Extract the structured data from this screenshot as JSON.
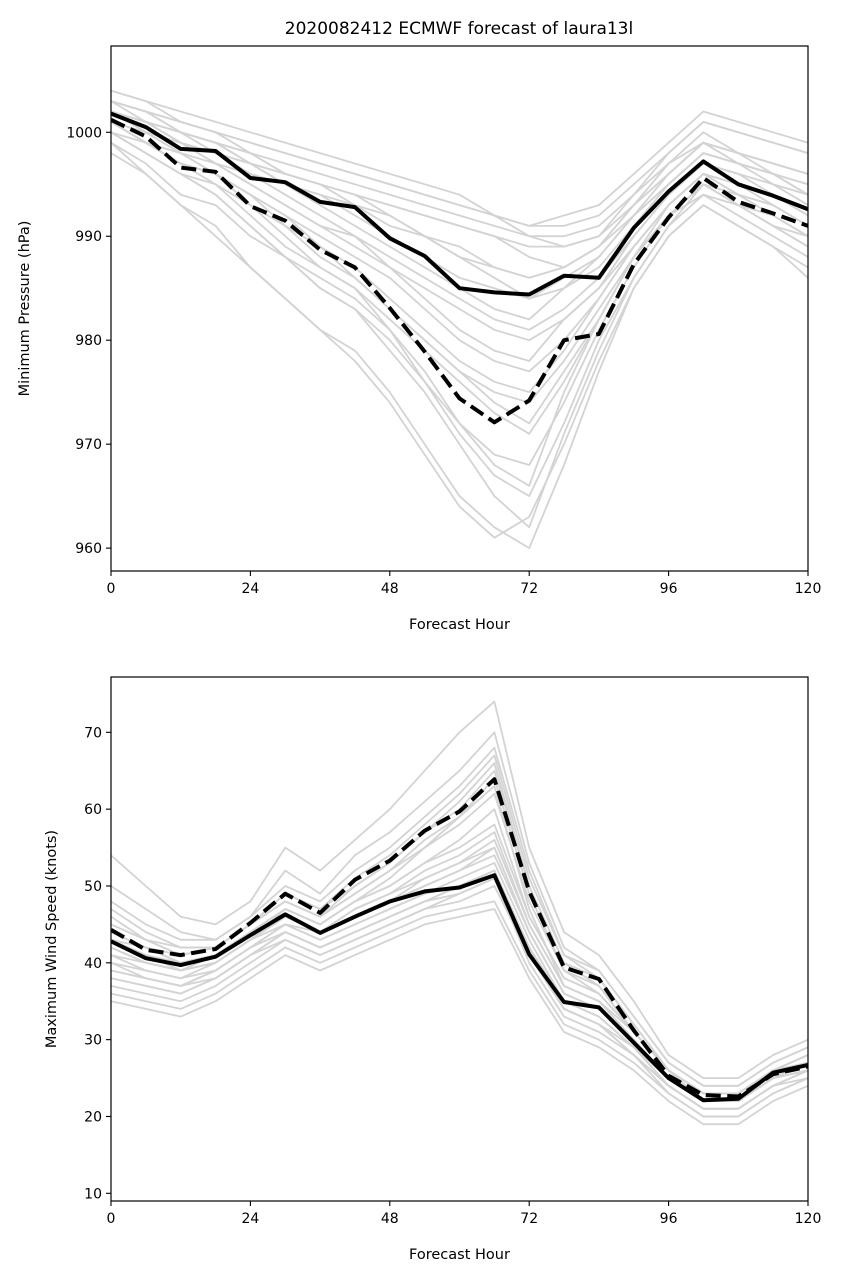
{
  "figure": {
    "title": "2020082412 ECMWF forecast of laura13l",
    "colors": {
      "ensemble": "#d3d3d3",
      "mean": "#000000",
      "background": "#ffffff"
    }
  },
  "chart_data": [
    {
      "type": "line",
      "title": "2020082412 ECMWF forecast of laura13l",
      "xlabel": "Forecast Hour",
      "ylabel": "Minimum Pressure (hPa)",
      "xlim": [
        0,
        120
      ],
      "ylim": [
        957.8,
        1008.3
      ],
      "xticks": [
        0,
        24,
        48,
        72,
        96,
        120
      ],
      "yticks": [
        960,
        970,
        980,
        990,
        1000
      ],
      "grid": false,
      "x": [
        0,
        6,
        12,
        18,
        24,
        30,
        36,
        42,
        48,
        54,
        60,
        66,
        72,
        78,
        84,
        90,
        96,
        102,
        108,
        114,
        120
      ],
      "series": [
        {
          "style": "solid",
          "values": [
            1001.8,
            1000.5,
            998.4,
            998.2,
            995.6,
            995.2,
            993.3,
            992.8,
            989.8,
            988.1,
            985.0,
            984.6,
            984.4,
            986.2,
            986.0,
            990.8,
            994.3,
            997.2,
            995.0,
            993.9,
            992.6
          ]
        },
        {
          "style": "dashed",
          "values": [
            1001.2,
            999.6,
            996.6,
            996.2,
            992.9,
            991.5,
            988.7,
            987.0,
            983.1,
            978.9,
            974.4,
            972.1,
            974.2,
            980.0,
            980.6,
            987.3,
            991.8,
            995.6,
            993.3,
            992.2,
            991.0
          ]
        }
      ],
      "ensemble": [
        [
          1003,
          1002,
          1001,
          1000,
          998,
          996,
          995,
          994,
          992,
          990,
          988,
          986,
          984,
          986,
          988,
          992,
          996,
          999,
          997,
          996,
          995
        ],
        [
          1002,
          1001,
          999,
          997,
          995,
          993,
          991,
          990,
          987,
          984,
          981,
          979,
          978,
          982,
          985,
          989,
          993,
          996,
          995,
          994,
          992
        ],
        [
          1001,
          999,
          997,
          996,
          994,
          992,
          989,
          986,
          983,
          980,
          977,
          975,
          974,
          978,
          983,
          988,
          992,
          994,
          993,
          991,
          990
        ],
        [
          1000,
          998,
          996,
          994,
          991,
          988,
          986,
          984,
          981,
          977,
          972,
          968,
          966,
          975,
          982,
          988,
          993,
          996,
          994,
          993,
          991
        ],
        [
          1004,
          1003,
          1002,
          1001,
          1000,
          999,
          998,
          997,
          996,
          995,
          994,
          992,
          990,
          989,
          990,
          994,
          998,
          1001,
          1000,
          999,
          998
        ],
        [
          999,
          997,
          994,
          993,
          990,
          988,
          985,
          983,
          979,
          975,
          970,
          965,
          962,
          971,
          979,
          986,
          991,
          995,
          993,
          991,
          989
        ],
        [
          1002,
          1000,
          999,
          998,
          997,
          996,
          995,
          994,
          993,
          992,
          991,
          990,
          988,
          987,
          989,
          993,
          997,
          1000,
          998,
          997,
          996
        ],
        [
          1001,
          1000,
          998,
          996,
          993,
          990,
          987,
          985,
          982,
          979,
          976,
          973,
          971,
          976,
          982,
          988,
          992,
          995,
          994,
          992,
          990
        ],
        [
          1003,
          1002,
          1000,
          999,
          997,
          995,
          993,
          991,
          989,
          987,
          985,
          983,
          982,
          985,
          988,
          992,
          995,
          998,
          997,
          996,
          994
        ],
        [
          1000,
          998,
          996,
          995,
          992,
          989,
          987,
          985,
          981,
          976,
          971,
          967,
          965,
          972,
          980,
          986,
          991,
          994,
          992,
          990,
          988
        ],
        [
          1002,
          1001,
          1000,
          999,
          998,
          997,
          996,
          995,
          994,
          993,
          992,
          991,
          990,
          990,
          991,
          994,
          997,
          999,
          998,
          997,
          996
        ],
        [
          1001,
          999,
          997,
          996,
          994,
          992,
          990,
          988,
          986,
          983,
          980,
          978,
          977,
          980,
          984,
          989,
          993,
          996,
          995,
          993,
          991
        ],
        [
          1004,
          1003,
          1001,
          1000,
          999,
          998,
          997,
          996,
          995,
          994,
          993,
          992,
          991,
          991,
          992,
          995,
          998,
          1001,
          1000,
          999,
          998
        ],
        [
          999,
          996,
          993,
          991,
          987,
          984,
          981,
          979,
          975,
          970,
          965,
          962,
          960,
          968,
          977,
          985,
          990,
          993,
          991,
          989,
          987
        ],
        [
          1002,
          1001,
          999,
          997,
          996,
          994,
          992,
          990,
          988,
          986,
          984,
          982,
          981,
          983,
          986,
          990,
          994,
          997,
          996,
          995,
          993
        ],
        [
          1003,
          1001,
          1000,
          999,
          998,
          996,
          995,
          993,
          992,
          990,
          989,
          987,
          986,
          987,
          989,
          992,
          995,
          998,
          997,
          995,
          994
        ],
        [
          1000,
          999,
          997,
          995,
          993,
          991,
          988,
          986,
          983,
          980,
          977,
          974,
          972,
          977,
          982,
          988,
          992,
          995,
          993,
          992,
          990
        ],
        [
          1001,
          1000,
          999,
          998,
          996,
          995,
          994,
          993,
          991,
          990,
          988,
          987,
          986,
          987,
          989,
          993,
          996,
          999,
          998,
          996,
          995
        ],
        [
          1002,
          1000,
          998,
          996,
          994,
          991,
          989,
          987,
          984,
          981,
          978,
          976,
          975,
          979,
          984,
          989,
          993,
          996,
          994,
          993,
          991
        ],
        [
          1003,
          1002,
          1001,
          1000,
          999,
          998,
          997,
          996,
          995,
          994,
          993,
          992,
          991,
          992,
          993,
          996,
          999,
          1002,
          1001,
          1000,
          999
        ],
        [
          998,
          996,
          993,
          990,
          987,
          984,
          981,
          978,
          974,
          969,
          964,
          961,
          963,
          970,
          978,
          985,
          990,
          993,
          991,
          989,
          986
        ],
        [
          1001,
          999,
          998,
          997,
          995,
          993,
          991,
          989,
          987,
          985,
          983,
          981,
          980,
          982,
          985,
          990,
          994,
          997,
          996,
          994,
          992
        ],
        [
          1002,
          1001,
          1000,
          998,
          997,
          995,
          994,
          992,
          990,
          988,
          986,
          985,
          984,
          985,
          987,
          991,
          995,
          998,
          997,
          996,
          994
        ],
        [
          1000,
          998,
          996,
          994,
          991,
          988,
          985,
          983,
          980,
          976,
          972,
          969,
          968,
          974,
          981,
          987,
          992,
          995,
          993,
          991,
          989
        ],
        [
          1003,
          1002,
          1000,
          999,
          997,
          996,
          995,
          994,
          993,
          992,
          991,
          990,
          989,
          989,
          990,
          993,
          996,
          999,
          998,
          997,
          996
        ]
      ]
    },
    {
      "type": "line",
      "title": "",
      "xlabel": "Forecast Hour",
      "ylabel": "Maximum Wind Speed (knots)",
      "xlim": [
        0,
        120
      ],
      "ylim": [
        9,
        77.2
      ],
      "xticks": [
        0,
        24,
        48,
        72,
        96,
        120
      ],
      "yticks": [
        10,
        20,
        30,
        40,
        50,
        60,
        70
      ],
      "grid": false,
      "x": [
        0,
        6,
        12,
        18,
        24,
        30,
        36,
        42,
        48,
        54,
        60,
        66,
        72,
        78,
        84,
        90,
        96,
        102,
        108,
        114,
        120
      ],
      "series": [
        {
          "style": "solid",
          "values": [
            42.8,
            40.6,
            39.7,
            40.8,
            43.6,
            46.3,
            43.9,
            46.0,
            48.0,
            49.3,
            49.8,
            51.4,
            41.1,
            34.9,
            34.2,
            29.6,
            25.0,
            22.1,
            22.3,
            25.7,
            26.7
          ]
        },
        {
          "style": "dashed",
          "values": [
            44.3,
            41.7,
            41.0,
            41.8,
            45.2,
            49.0,
            46.5,
            50.8,
            53.3,
            57.2,
            59.7,
            63.9,
            49.3,
            39.4,
            37.9,
            31.2,
            25.3,
            22.8,
            22.6,
            25.5,
            26.5
          ]
        }
      ],
      "ensemble": [
        [
          40,
          38,
          37,
          39,
          42,
          45,
          44,
          46,
          48,
          50,
          52,
          55,
          44,
          36,
          34,
          30,
          25,
          22,
          22,
          25,
          27
        ],
        [
          45,
          43,
          41,
          42,
          45,
          48,
          46,
          50,
          53,
          57,
          60,
          65,
          50,
          40,
          37,
          31,
          26,
          23,
          23,
          26,
          28
        ],
        [
          38,
          37,
          36,
          38,
          41,
          44,
          42,
          44,
          46,
          48,
          50,
          52,
          42,
          34,
          32,
          28,
          24,
          21,
          21,
          24,
          26
        ],
        [
          42,
          40,
          39,
          40,
          43,
          47,
          45,
          48,
          51,
          55,
          59,
          63,
          47,
          37,
          35,
          30,
          25,
          22,
          22,
          25,
          26
        ],
        [
          50,
          47,
          44,
          43,
          46,
          52,
          49,
          54,
          57,
          61,
          65,
          70,
          53,
          42,
          39,
          33,
          27,
          24,
          24,
          27,
          29
        ],
        [
          36,
          35,
          34,
          36,
          39,
          42,
          40,
          42,
          44,
          46,
          47,
          48,
          39,
          32,
          30,
          27,
          23,
          20,
          20,
          23,
          25
        ],
        [
          44,
          42,
          40,
          41,
          44,
          46,
          44,
          47,
          49,
          51,
          53,
          56,
          45,
          37,
          35,
          31,
          26,
          23,
          23,
          26,
          27
        ],
        [
          41,
          39,
          38,
          40,
          43,
          45,
          43,
          45,
          47,
          49,
          51,
          53,
          43,
          35,
          33,
          29,
          24,
          21,
          21,
          24,
          26
        ],
        [
          47,
          44,
          42,
          42,
          45,
          49,
          47,
          51,
          54,
          58,
          62,
          67,
          51,
          41,
          38,
          32,
          26,
          23,
          23,
          26,
          28
        ],
        [
          39,
          38,
          37,
          38,
          41,
          43,
          41,
          43,
          45,
          47,
          48,
          50,
          41,
          34,
          32,
          28,
          24,
          21,
          21,
          24,
          25
        ],
        [
          43,
          41,
          40,
          41,
          44,
          47,
          45,
          48,
          50,
          53,
          56,
          60,
          46,
          38,
          36,
          31,
          26,
          22,
          22,
          25,
          27
        ],
        [
          54,
          50,
          46,
          45,
          48,
          55,
          52,
          56,
          60,
          65,
          70,
          74,
          55,
          44,
          41,
          35,
          28,
          25,
          25,
          28,
          30
        ],
        [
          37,
          36,
          35,
          37,
          40,
          43,
          41,
          43,
          45,
          47,
          49,
          51,
          40,
          33,
          31,
          28,
          23,
          20,
          20,
          23,
          25
        ],
        [
          42,
          40,
          39,
          41,
          44,
          46,
          44,
          46,
          48,
          50,
          52,
          54,
          44,
          36,
          34,
          30,
          25,
          22,
          22,
          25,
          26
        ],
        [
          46,
          43,
          41,
          42,
          45,
          48,
          46,
          49,
          52,
          56,
          59,
          64,
          49,
          39,
          37,
          31,
          26,
          23,
          23,
          26,
          28
        ],
        [
          40,
          39,
          38,
          39,
          42,
          45,
          43,
          45,
          47,
          49,
          50,
          52,
          42,
          35,
          33,
          29,
          25,
          22,
          22,
          25,
          26
        ],
        [
          44,
          42,
          41,
          42,
          45,
          49,
          47,
          50,
          53,
          57,
          61,
          66,
          50,
          40,
          38,
          32,
          26,
          23,
          23,
          26,
          28
        ],
        [
          38,
          37,
          36,
          38,
          41,
          44,
          42,
          44,
          46,
          48,
          49,
          51,
          41,
          34,
          32,
          28,
          24,
          21,
          21,
          24,
          26
        ],
        [
          43,
          41,
          39,
          40,
          43,
          46,
          44,
          47,
          49,
          52,
          54,
          57,
          45,
          37,
          35,
          30,
          25,
          22,
          22,
          25,
          27
        ],
        [
          48,
          45,
          43,
          43,
          46,
          50,
          48,
          52,
          55,
          59,
          63,
          68,
          52,
          41,
          39,
          33,
          27,
          24,
          24,
          27,
          29
        ],
        [
          35,
          34,
          33,
          35,
          38,
          41,
          39,
          41,
          43,
          45,
          46,
          47,
          38,
          31,
          29,
          26,
          22,
          19,
          19,
          22,
          24
        ],
        [
          41,
          40,
          39,
          40,
          43,
          46,
          44,
          46,
          48,
          51,
          53,
          55,
          44,
          36,
          34,
          30,
          25,
          22,
          22,
          25,
          26
        ],
        [
          45,
          43,
          42,
          42,
          45,
          48,
          46,
          49,
          52,
          55,
          58,
          62,
          48,
          39,
          36,
          31,
          26,
          23,
          23,
          26,
          27
        ],
        [
          39,
          38,
          37,
          39,
          42,
          44,
          42,
          44,
          46,
          48,
          50,
          52,
          42,
          34,
          32,
          29,
          24,
          21,
          21,
          24,
          26
        ],
        [
          43,
          42,
          40,
          41,
          44,
          47,
          45,
          48,
          50,
          53,
          55,
          58,
          46,
          38,
          36,
          31,
          26,
          23,
          23,
          26,
          27
        ]
      ]
    }
  ]
}
